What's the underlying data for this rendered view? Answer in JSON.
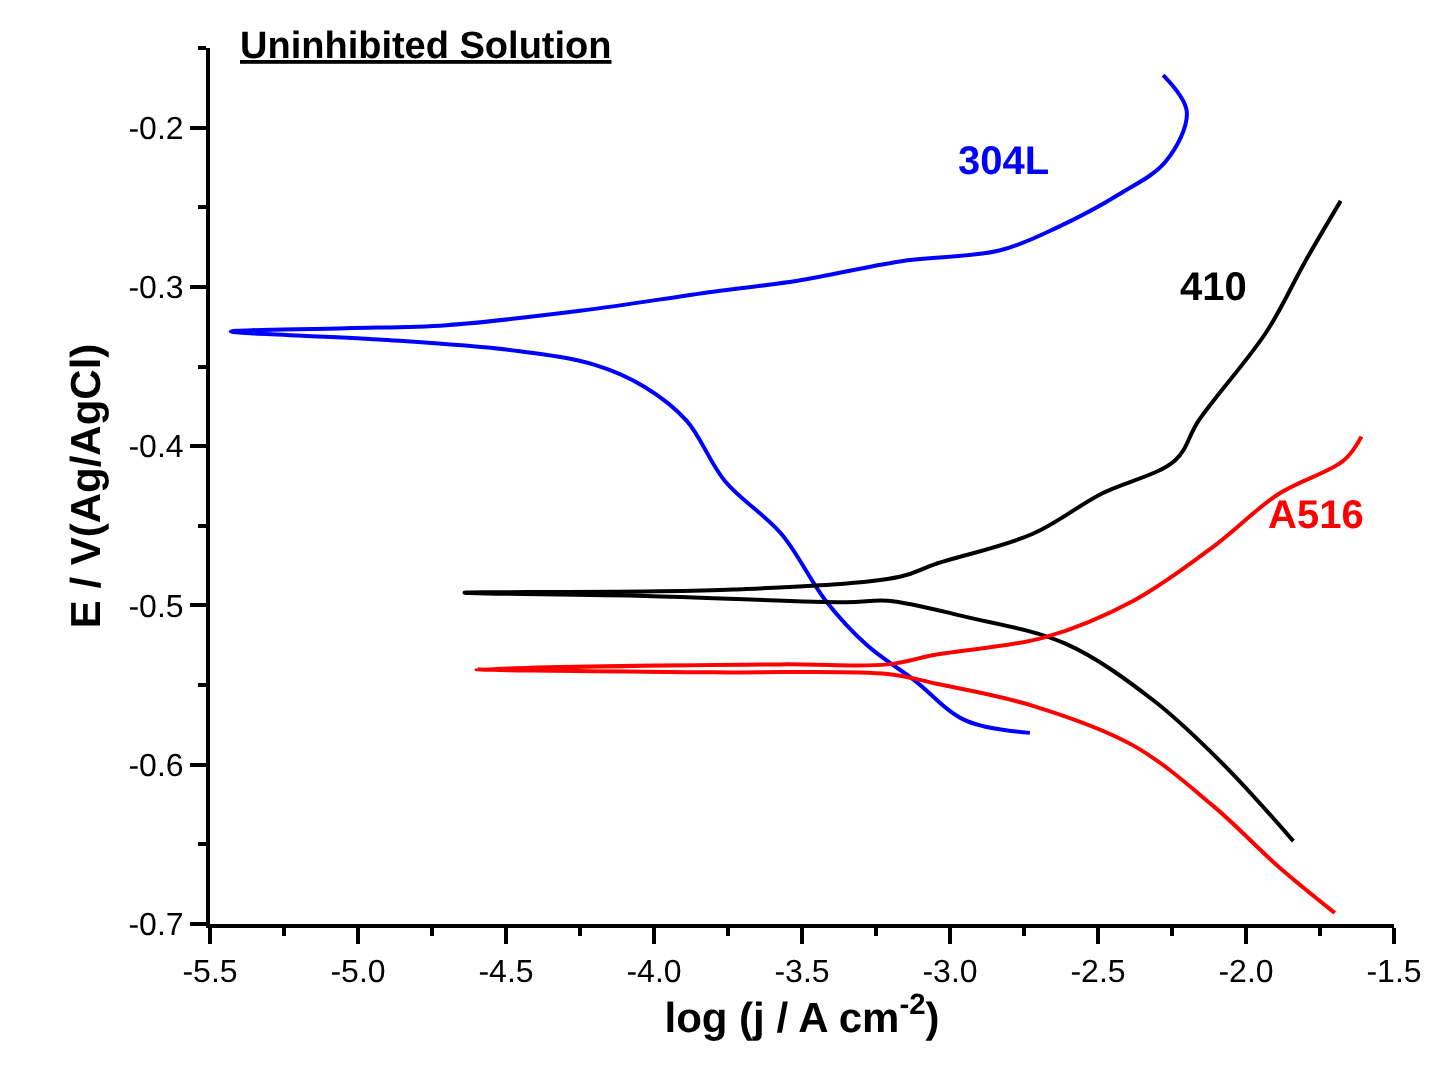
{
  "chart_data": {
    "type": "line",
    "title": "Uninhibited Solution",
    "xlabel": "log (j / A cm$^{-2}$)",
    "ylabel": "E / V(Ag/AgCl)",
    "xlim": [
      -5.5,
      -1.5
    ],
    "ylim": [
      -0.7,
      -0.15
    ],
    "xticks": [
      -5.5,
      {
        "value": -5.25,
        "label": null
      },
      {
        "value": -5.0,
        "label": "-5.0"
      },
      {
        "value": -4.75,
        "label": null
      },
      -4.5,
      {
        "value": -4.25,
        "label": null
      },
      {
        "value": -4.0,
        "label": "-4.0"
      },
      {
        "value": -3.75,
        "label": null
      },
      -3.5,
      {
        "value": -3.25,
        "label": null
      },
      {
        "value": -3.0,
        "label": "-3.0"
      },
      {
        "value": -2.75,
        "label": null
      },
      -2.5,
      {
        "value": -2.25,
        "label": null
      },
      {
        "value": -2.0,
        "label": "-2.0"
      },
      {
        "value": -1.75,
        "label": null
      },
      -1.5
    ],
    "yticks": [
      -0.7,
      {
        "value": -0.65,
        "label": null
      },
      -0.6,
      {
        "value": -0.55,
        "label": null
      },
      -0.5,
      {
        "value": -0.45,
        "label": null
      },
      -0.4,
      {
        "value": -0.35,
        "label": null
      },
      -0.3,
      {
        "value": -0.25,
        "label": null
      },
      -0.2,
      {
        "value": -0.15,
        "label": null
      }
    ],
    "legend": false,
    "marker": "none",
    "line_style": "solid",
    "series": [
      {
        "name": "304L",
        "color": "#0000ff",
        "x": [
          -2.28,
          -2.2,
          -2.27,
          -2.43,
          -2.63,
          -2.83,
          -3.17,
          -3.51,
          -3.8,
          -4.25,
          -4.7,
          -5.04,
          -5.43,
          -4.93,
          -4.47,
          -4.2,
          -4.03,
          -3.89,
          -3.76,
          -3.57,
          -3.42,
          -3.28,
          -3.12,
          -2.95,
          -2.73
        ],
        "values": [
          -0.167,
          -0.19,
          -0.221,
          -0.242,
          -0.262,
          -0.277,
          -0.284,
          -0.296,
          -0.303,
          -0.315,
          -0.324,
          -0.326,
          -0.328,
          -0.333,
          -0.34,
          -0.349,
          -0.363,
          -0.384,
          -0.422,
          -0.455,
          -0.497,
          -0.525,
          -0.547,
          -0.572,
          -0.58
        ]
      },
      {
        "name": "410",
        "color": "#000000",
        "x": [
          -1.68,
          -1.8,
          -1.93,
          -2.16,
          -2.24,
          -2.49,
          -2.72,
          -3.05,
          -3.17,
          -3.73,
          -4.64,
          -4.03,
          -3.35,
          -3.21,
          -2.95,
          -2.61,
          -2.31,
          -2.07,
          -1.84
        ],
        "values": [
          -0.246,
          -0.284,
          -0.328,
          -0.384,
          -0.409,
          -0.43,
          -0.455,
          -0.474,
          -0.482,
          -0.49,
          -0.492,
          -0.494,
          -0.498,
          -0.497,
          -0.507,
          -0.524,
          -0.56,
          -0.601,
          -0.648
        ]
      },
      {
        "name": "A516",
        "color": "#ff0000",
        "x": [
          -1.61,
          -1.67,
          -1.89,
          -2.11,
          -2.38,
          -2.68,
          -3.05,
          -3.21,
          -3.57,
          -4.6,
          -3.8,
          -3.21,
          -3.05,
          -2.72,
          -2.38,
          -2.11,
          -1.89,
          -1.7
        ],
        "values": [
          -0.394,
          -0.409,
          -0.43,
          -0.463,
          -0.497,
          -0.52,
          -0.531,
          -0.537,
          -0.537,
          -0.54,
          -0.542,
          -0.543,
          -0.549,
          -0.563,
          -0.588,
          -0.626,
          -0.664,
          -0.693
        ]
      }
    ]
  }
}
